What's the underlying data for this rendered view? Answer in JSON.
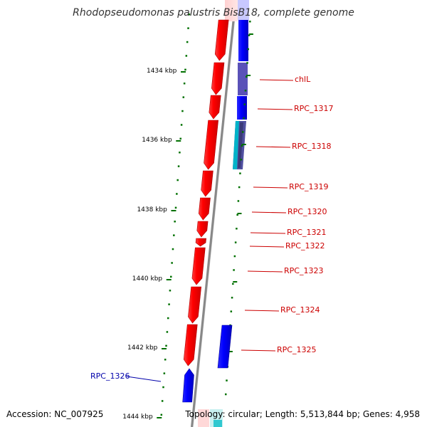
{
  "title": "Rhodopseudomonas palustris BisB18, complete genome",
  "accession": "Accession: NC_007925",
  "topology": "Topology: circular; Length: 5,513,844 bp; Genes: 4,958",
  "colors": {
    "forward_gene": "#ff0000",
    "reverse_gene": "#0000ff",
    "rna_gene": "#00b3c8",
    "tick": "#007000",
    "forward_label": "#cc0000",
    "reverse_label": "#0000aa",
    "backbone": "#888888"
  },
  "ticks": [
    {
      "label": "1434 kbp"
    },
    {
      "label": "1436 kbp"
    },
    {
      "label": "1438 kbp"
    },
    {
      "label": "1440 kbp"
    },
    {
      "label": "1442 kbp"
    },
    {
      "label": "1444 kbp"
    }
  ],
  "genes": [
    {
      "label": "chlL",
      "strand": "forward"
    },
    {
      "label": "RPC_1317",
      "strand": "forward"
    },
    {
      "label": "RPC_1318",
      "strand": "forward"
    },
    {
      "label": "RPC_1319",
      "strand": "forward"
    },
    {
      "label": "RPC_1320",
      "strand": "forward"
    },
    {
      "label": "RPC_1321",
      "strand": "forward"
    },
    {
      "label": "RPC_1322",
      "strand": "forward"
    },
    {
      "label": "RPC_1323",
      "strand": "forward"
    },
    {
      "label": "RPC_1324",
      "strand": "forward"
    },
    {
      "label": "RPC_1325",
      "strand": "forward"
    },
    {
      "label": "RPC_1326",
      "strand": "reverse"
    }
  ]
}
